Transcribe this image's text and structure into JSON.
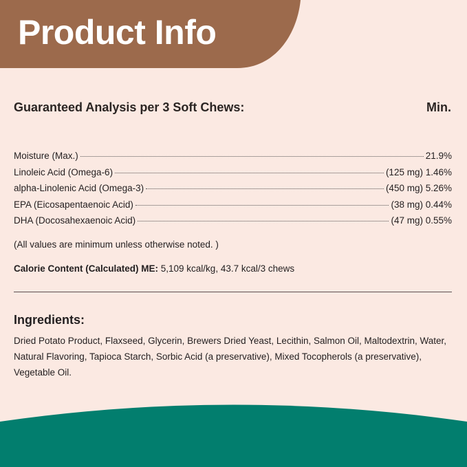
{
  "colors": {
    "banner": "#9c6a4c",
    "background": "#fbe9e2",
    "footer": "#027e6e"
  },
  "header": {
    "title": "Product Info"
  },
  "analysis": {
    "heading": "Guaranteed Analysis per 3 Soft Chews:",
    "column": "Min.",
    "rows": [
      {
        "label": "Moisture (Max.)",
        "value": "21.9%"
      },
      {
        "label": "Linoleic Acid (Omega-6)",
        "value": "(125 mg) 1.46%"
      },
      {
        "label": "alpha-Linolenic Acid (Omega-3)",
        "value": "(450 mg) 5.26%"
      },
      {
        "label": "EPA (Eicosapentaenoic Acid)",
        "value": "(38 mg) 0.44%"
      },
      {
        "label": "DHA (Docosahexaenoic Acid)",
        "value": "(47 mg) 0.55%"
      }
    ],
    "note": "(All values are minimum unless otherwise noted. )",
    "calorie_label": "Calorie Content (Calculated) ME:",
    "calorie_value": " 5,109 kcal/kg, 43.7 kcal/3 chews"
  },
  "ingredients": {
    "heading": "Ingredients:",
    "text": "Dried Potato Product, Flaxseed, Glycerin, Brewers Dried Yeast, Lecithin, Salmon Oil, Maltodextrin, Water, Natural Flavoring, Tapioca Starch, Sorbic Acid (a preservative), Mixed Tocopherols (a preservative), Vegetable Oil."
  }
}
